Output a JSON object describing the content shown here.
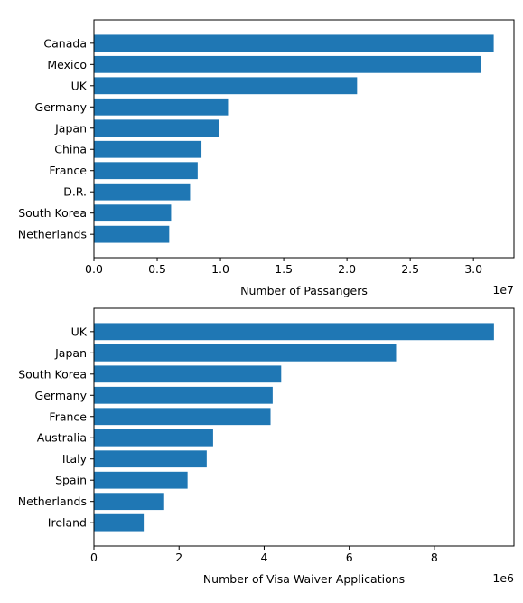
{
  "chart_data": [
    {
      "type": "bar",
      "orientation": "horizontal",
      "categories": [
        "Canada",
        "Mexico",
        "UK",
        "Germany",
        "Japan",
        "China",
        "France",
        "D.R.",
        "South Korea",
        "Netherlands"
      ],
      "values": [
        31600000,
        30600000,
        20800000,
        10600000,
        9900000,
        8500000,
        8200000,
        7600000,
        6100000,
        5950000
      ],
      "xlabel": "Number of Passangers",
      "ylabel": "",
      "xlim": [
        0,
        33200000
      ],
      "xticks": [
        0,
        5000000,
        10000000,
        15000000,
        20000000,
        25000000,
        30000000
      ],
      "xtick_labels": [
        "0.0",
        "0.5",
        "1.0",
        "1.5",
        "2.0",
        "2.5",
        "3.0"
      ],
      "offset_text": "1e7",
      "color": "#1f77b4",
      "grid": false
    },
    {
      "type": "bar",
      "orientation": "horizontal",
      "categories": [
        "UK",
        "Japan",
        "South Korea",
        "Germany",
        "France",
        "Australia",
        "Italy",
        "Spain",
        "Netherlands",
        "Ireland"
      ],
      "values": [
        9400000,
        7100000,
        4400000,
        4200000,
        4150000,
        2800000,
        2650000,
        2200000,
        1650000,
        1170000
      ],
      "xlabel": "Number of Visa Waiver Applications",
      "ylabel": "",
      "xlim": [
        0,
        9870000
      ],
      "xticks": [
        0,
        2000000,
        4000000,
        6000000,
        8000000
      ],
      "xtick_labels": [
        "0",
        "2",
        "4",
        "6",
        "8"
      ],
      "offset_text": "1e6",
      "color": "#1f77b4",
      "grid": false
    }
  ]
}
